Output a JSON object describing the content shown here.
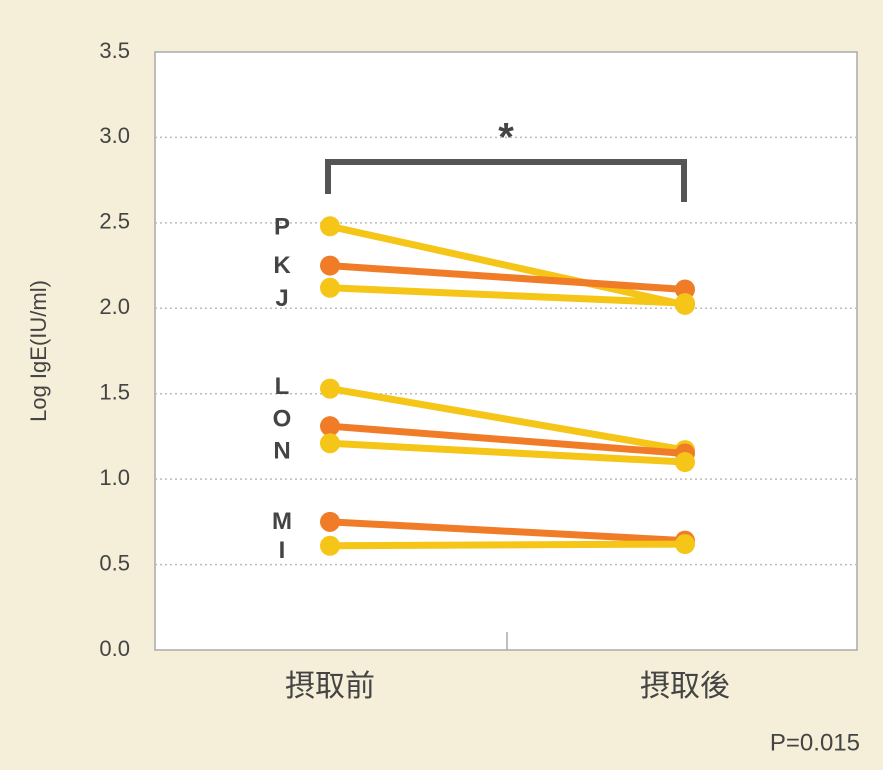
{
  "chart_data": {
    "type": "slope",
    "categories": [
      "摂取前",
      "摂取後"
    ],
    "y_label": "Log IgE(IU/ml)",
    "ylim": [
      0,
      3.5
    ],
    "yticks": [
      {
        "value": 0,
        "label": "0.0"
      },
      0.5,
      {
        "value": 1,
        "label": "1.0"
      },
      1.5,
      {
        "value": 2,
        "label": "2.0"
      },
      2.5,
      {
        "value": 3,
        "label": "3.0"
      },
      3.5
    ],
    "grid": true,
    "series": [
      {
        "name": "P",
        "color": "#f5c518",
        "values": [
          2.48,
          2.02
        ]
      },
      {
        "name": "K",
        "color": "#f07c28",
        "values": [
          2.25,
          2.11
        ]
      },
      {
        "name": "J",
        "color": "#f5c518",
        "values": [
          2.12,
          2.03
        ]
      },
      {
        "name": "L",
        "color": "#f5c518",
        "values": [
          1.53,
          1.17
        ]
      },
      {
        "name": "O",
        "color": "#f07c28",
        "values": [
          1.31,
          1.15
        ]
      },
      {
        "name": "N",
        "color": "#f5c518",
        "values": [
          1.21,
          1.1
        ]
      },
      {
        "name": "M",
        "color": "#f07c28",
        "values": [
          0.75,
          0.64
        ]
      },
      {
        "name": "I",
        "color": "#f5c518",
        "values": [
          0.61,
          0.62
        ]
      }
    ],
    "significance_mark": "*",
    "p_value_text": "P=0.015"
  }
}
